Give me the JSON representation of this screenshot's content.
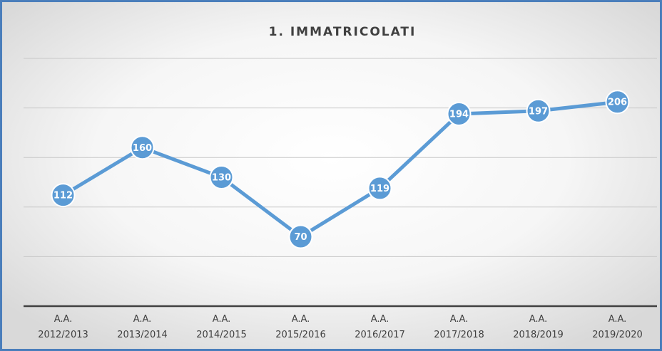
{
  "chart_data": {
    "type": "line",
    "title": "1. IMMATRICOLATI",
    "categories": [
      "A.A. 2012/2013",
      "A.A. 2013/2014",
      "A.A. 2014/2015",
      "A.A. 2015/2016",
      "A.A. 2016/2017",
      "A.A. 2017/2018",
      "A.A. 2018/2019",
      "A.A. 2019/2020"
    ],
    "values": [
      112,
      160,
      130,
      70,
      119,
      194,
      197,
      206
    ],
    "color": "#5b9bd5",
    "ylim": [
      0,
      250
    ],
    "yticks": [
      0,
      50,
      100,
      150,
      200,
      250
    ],
    "grid": true
  }
}
